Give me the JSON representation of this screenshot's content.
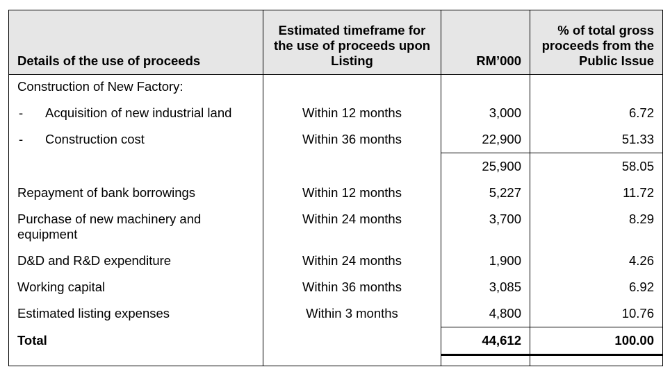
{
  "table": {
    "headers": {
      "details": "Details of the use of proceeds",
      "timeframe": "Estimated timeframe for the use of proceeds upon Listing",
      "rm": "RM’000",
      "percent": "% of total gross proceeds from the Public Issue"
    },
    "section_title": "Construction of New Factory:",
    "sub_items": [
      {
        "bullet": "-",
        "details": "Acquisition of new industrial land",
        "timeframe": "Within 12 months",
        "rm": "3,000",
        "percent": "6.72"
      },
      {
        "bullet": "-",
        "details": "Construction cost",
        "timeframe": "Within 36 months",
        "rm": "22,900",
        "percent": "51.33"
      }
    ],
    "subtotal": {
      "rm": "25,900",
      "percent": "58.05"
    },
    "items": [
      {
        "details": "Repayment of bank borrowings",
        "timeframe": "Within 12 months",
        "rm": "5,227",
        "percent": "11.72"
      },
      {
        "details": "Purchase of new machinery and equipment",
        "timeframe": "Within 24 months",
        "rm": "3,700",
        "percent": "8.29"
      },
      {
        "details": "D&D and R&D expenditure",
        "timeframe": "Within 24 months",
        "rm": "1,900",
        "percent": "4.26"
      },
      {
        "details": "Working capital",
        "timeframe": "Within 36 months",
        "rm": "3,085",
        "percent": "6.92"
      },
      {
        "details": "Estimated listing expenses",
        "timeframe": "Within 3 months",
        "rm": "4,800",
        "percent": "10.76"
      }
    ],
    "total": {
      "label": "Total",
      "rm": "44,612",
      "percent": "100.00"
    }
  }
}
